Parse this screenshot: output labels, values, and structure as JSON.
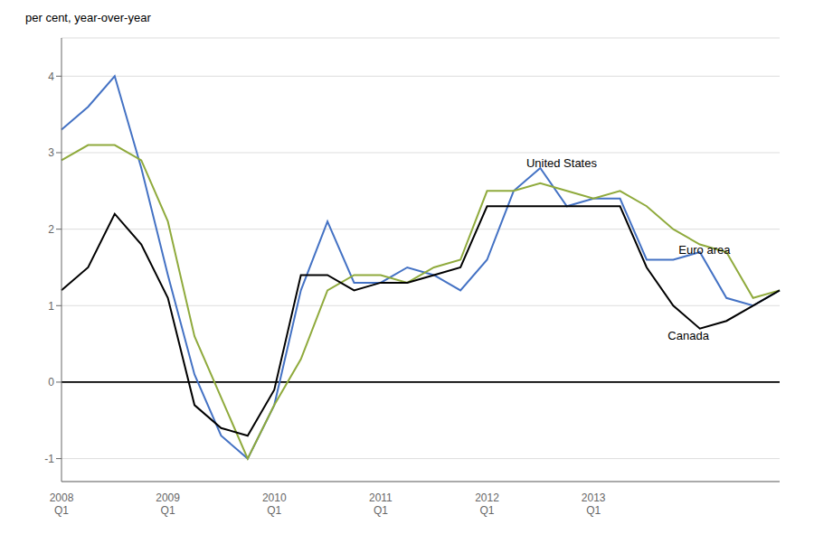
{
  "chart_data": {
    "type": "line",
    "y_label": "per cent, year-over-year",
    "categories": [
      "2008\nQ1",
      null,
      null,
      null,
      "2009\nQ1",
      null,
      null,
      null,
      "2010\nQ1",
      null,
      null,
      null,
      "2011\nQ1",
      null,
      null,
      null,
      "2012\nQ1",
      null,
      null,
      null,
      "2013\nQ1",
      null,
      null,
      null,
      null,
      null,
      null,
      null
    ],
    "series": [
      {
        "name": "United States",
        "color": "#4472c4",
        "values": [
          3.3,
          3.6,
          4.0,
          2.8,
          1.4,
          0.1,
          -0.7,
          -1.0,
          -0.3,
          1.2,
          2.1,
          1.3,
          1.3,
          1.5,
          1.4,
          1.2,
          1.6,
          2.5,
          2.8,
          2.3,
          2.4,
          2.4,
          1.6,
          1.6,
          1.7,
          1.1,
          1.0,
          1.2
        ]
      },
      {
        "name": "Euro area",
        "color": "#8faa3c",
        "values": [
          2.9,
          3.1,
          3.1,
          2.9,
          2.1,
          0.6,
          -0.2,
          -1.0,
          -0.3,
          0.3,
          1.2,
          1.4,
          1.4,
          1.3,
          1.5,
          1.6,
          2.5,
          2.5,
          2.6,
          2.5,
          2.4,
          2.5,
          2.3,
          2.0,
          1.8,
          1.7,
          1.1,
          1.2
        ]
      },
      {
        "name": "Canada",
        "color": "#000000",
        "values": [
          1.2,
          1.5,
          2.2,
          1.8,
          1.1,
          -0.3,
          -0.6,
          -0.7,
          -0.1,
          1.4,
          1.4,
          1.2,
          1.3,
          1.3,
          1.4,
          1.5,
          2.3,
          2.3,
          2.3,
          2.3,
          2.3,
          2.3,
          1.5,
          1.0,
          0.7,
          0.8,
          1.0,
          1.2
        ]
      }
    ],
    "ylim": [
      -1.3,
      4.5
    ],
    "yticks": [
      -1,
      0,
      1,
      2,
      3,
      4
    ],
    "grid": true
  }
}
